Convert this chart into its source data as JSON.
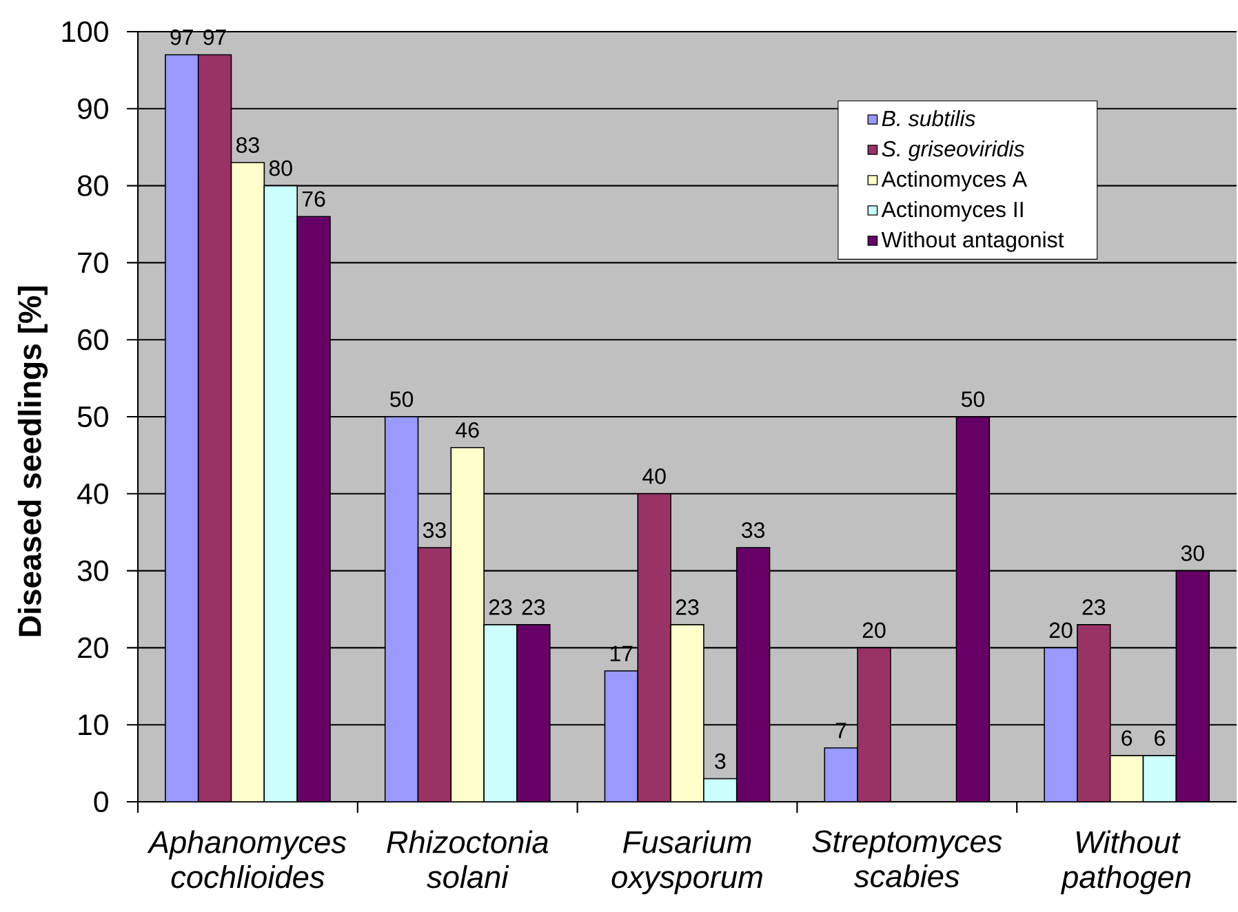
{
  "chart_data": {
    "type": "bar",
    "ylabel": "Diseased seedlings [%]",
    "categories": [
      "Aphanomyces cochlioides",
      "Rhizoctonia solani",
      "Fusarium oxysporum",
      "Streptomyces scabies",
      "Without pathogen"
    ],
    "series": [
      {
        "name": "*B. subtilis*",
        "color": "#9999ff",
        "values": [
          97,
          50,
          17,
          7,
          20
        ]
      },
      {
        "name": "*S. griseoviridis*",
        "color": "#993366",
        "values": [
          97,
          33,
          40,
          20,
          23
        ]
      },
      {
        "name": "Actinomyces A",
        "color": "#ffffcc",
        "values": [
          83,
          46,
          23,
          null,
          6
        ]
      },
      {
        "name": "Actinomyces II",
        "color": "#ccffff",
        "values": [
          80,
          23,
          3,
          null,
          6
        ]
      },
      {
        "name": "Without antagonist",
        "color": "#660066",
        "values": [
          76,
          23,
          33,
          50,
          30
        ]
      }
    ],
    "ylim": [
      0,
      100
    ],
    "yticks": [
      0,
      10,
      20,
      30,
      40,
      50,
      60,
      70,
      80,
      90,
      100
    ],
    "grid": "y",
    "legend": "top right",
    "data_labels": true
  }
}
